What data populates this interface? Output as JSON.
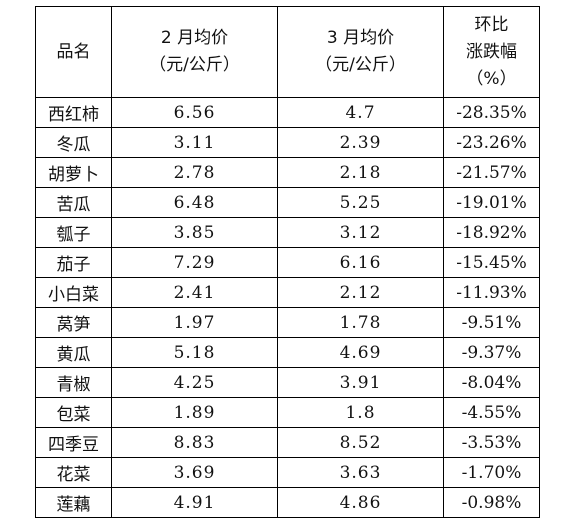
{
  "table": {
    "headers": {
      "name": [
        "品名"
      ],
      "feb": [
        "2 月均价",
        "（元/公斤）"
      ],
      "mar": [
        "3 月均价",
        "（元/公斤）"
      ],
      "change": [
        "环比",
        "涨跌幅",
        "（%）"
      ]
    },
    "rows": [
      {
        "name": "西红柿",
        "feb": "6.56",
        "mar": "4.7",
        "change": "-28.35%"
      },
      {
        "name": "冬瓜",
        "feb": "3.11",
        "mar": "2.39",
        "change": "-23.26%"
      },
      {
        "name": "胡萝卜",
        "feb": "2.78",
        "mar": "2.18",
        "change": "-21.57%"
      },
      {
        "name": "苦瓜",
        "feb": "6.48",
        "mar": "5.25",
        "change": "-19.01%"
      },
      {
        "name": "瓠子",
        "feb": "3.85",
        "mar": "3.12",
        "change": "-18.92%"
      },
      {
        "name": "茄子",
        "feb": "7.29",
        "mar": "6.16",
        "change": "-15.45%"
      },
      {
        "name": "小白菜",
        "feb": "2.41",
        "mar": "2.12",
        "change": "-11.93%"
      },
      {
        "name": "莴笋",
        "feb": "1.97",
        "mar": "1.78",
        "change": "-9.51%"
      },
      {
        "name": "黄瓜",
        "feb": "5.18",
        "mar": "4.69",
        "change": "-9.37%"
      },
      {
        "name": "青椒",
        "feb": "4.25",
        "mar": "3.91",
        "change": "-8.04%"
      },
      {
        "name": "包菜",
        "feb": "1.89",
        "mar": "1.8",
        "change": "-4.55%"
      },
      {
        "name": "四季豆",
        "feb": "8.83",
        "mar": "8.52",
        "change": "-3.53%"
      },
      {
        "name": "花菜",
        "feb": "3.69",
        "mar": "3.63",
        "change": "-1.70%"
      },
      {
        "name": "莲藕",
        "feb": "4.91",
        "mar": "4.86",
        "change": "-0.98%"
      }
    ]
  }
}
